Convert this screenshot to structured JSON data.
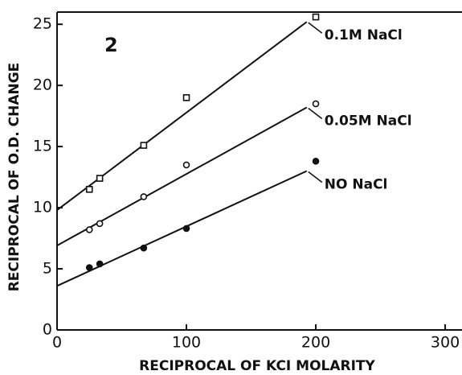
{
  "chart_data": {
    "type": "scatter",
    "annotation": "2",
    "x_label": "RECIPROCAL OF KCI MOLARITY",
    "y_label": "RECIPROCAL OF O.D. CHANGE",
    "xlim": [
      0,
      313
    ],
    "ylim": [
      0,
      26
    ],
    "xticks": [
      0,
      100,
      200,
      300
    ],
    "yticks": [
      0,
      5,
      10,
      15,
      20,
      25
    ],
    "color": "#111111",
    "series": [
      {
        "name": "0.1M NaCl",
        "marker": "open-square",
        "x": [
          25,
          33,
          67,
          100,
          200
        ],
        "values": [
          11.5,
          12.4,
          15.1,
          19.0,
          25.6
        ],
        "fit": {
          "x": [
            0,
            193
          ],
          "values": [
            9.8,
            25.2
          ]
        }
      },
      {
        "name": "0.05M NaCl",
        "marker": "open-circle",
        "x": [
          25,
          33,
          67,
          100,
          200
        ],
        "values": [
          8.2,
          8.7,
          10.9,
          13.5,
          18.5
        ],
        "fit": {
          "x": [
            0,
            193
          ],
          "values": [
            6.9,
            18.2
          ]
        }
      },
      {
        "name": "NO NaCl",
        "marker": "filled-circle",
        "x": [
          25,
          33,
          67,
          100,
          200
        ],
        "values": [
          5.1,
          5.4,
          6.7,
          8.3,
          13.8
        ],
        "fit": {
          "x": [
            0,
            193
          ],
          "values": [
            3.6,
            13.0
          ]
        }
      }
    ]
  }
}
